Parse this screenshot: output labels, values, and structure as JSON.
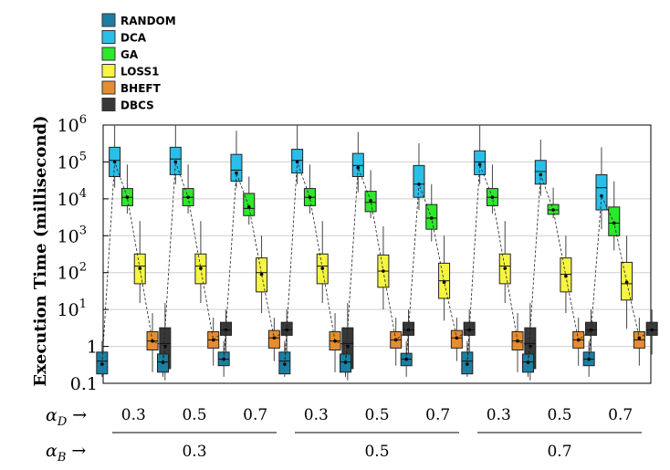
{
  "chart_data": {
    "type": "box",
    "ylabel": "Execution Time (millisecond)",
    "yscale": "log",
    "ylim": [
      0.1,
      1000000
    ],
    "yticks": [
      {
        "value": 0.1,
        "label": "0.1",
        "exp": ""
      },
      {
        "value": 1,
        "label": "1",
        "exp": ""
      },
      {
        "value": 10,
        "label": "10",
        "exp": "1"
      },
      {
        "value": 100,
        "label": "10",
        "exp": "2"
      },
      {
        "value": 1000,
        "label": "10",
        "exp": "3"
      },
      {
        "value": 10000,
        "label": "10",
        "exp": "4"
      },
      {
        "value": 100000,
        "label": "10",
        "exp": "5"
      },
      {
        "value": 1000000,
        "label": "10",
        "exp": "6"
      }
    ],
    "grid": true,
    "legend_position": "top-left",
    "groups": [
      {
        "alpha_d": "0.3",
        "alpha_b": "0.3"
      },
      {
        "alpha_d": "0.5",
        "alpha_b": "0.3"
      },
      {
        "alpha_d": "0.7",
        "alpha_b": "0.3"
      },
      {
        "alpha_d": "0.3",
        "alpha_b": "0.5"
      },
      {
        "alpha_d": "0.5",
        "alpha_b": "0.5"
      },
      {
        "alpha_d": "0.7",
        "alpha_b": "0.5"
      },
      {
        "alpha_d": "0.3",
        "alpha_b": "0.7"
      },
      {
        "alpha_d": "0.5",
        "alpha_b": "0.7"
      },
      {
        "alpha_d": "0.7",
        "alpha_b": "0.7"
      }
    ],
    "alpha_b_groups": [
      "0.3",
      "0.5",
      "0.7"
    ],
    "alpha_d_symbol": "α",
    "alpha_d_sub": "D",
    "alpha_b_symbol": "α",
    "alpha_b_sub": "B",
    "arrow": "→",
    "series": [
      {
        "name": "RANDOM",
        "color": "#1a7fa3",
        "boxes": [
          {
            "min": 0.15,
            "q1": 0.18,
            "median": 0.4,
            "q3": 0.7,
            "max": 1.4,
            "mean": 0.33
          },
          {
            "min": 0.15,
            "q1": 0.2,
            "median": 0.38,
            "q3": 0.62,
            "max": 1.1,
            "mean": 0.37
          },
          {
            "min": 0.15,
            "q1": 0.3,
            "median": 0.45,
            "q3": 0.7,
            "max": 1.4,
            "mean": 0.45
          },
          {
            "min": 0.15,
            "q1": 0.18,
            "median": 0.4,
            "q3": 0.7,
            "max": 1.4,
            "mean": 0.33
          },
          {
            "min": 0.15,
            "q1": 0.2,
            "median": 0.38,
            "q3": 0.62,
            "max": 1.1,
            "mean": 0.37
          },
          {
            "min": 0.15,
            "q1": 0.3,
            "median": 0.45,
            "q3": 0.65,
            "max": 1.4,
            "mean": 0.45
          },
          {
            "min": 0.15,
            "q1": 0.18,
            "median": 0.4,
            "q3": 0.7,
            "max": 1.4,
            "mean": 0.33
          },
          {
            "min": 0.15,
            "q1": 0.2,
            "median": 0.38,
            "q3": 0.62,
            "max": 1.1,
            "mean": 0.37
          },
          {
            "min": 0.15,
            "q1": 0.3,
            "median": 0.45,
            "q3": 0.7,
            "max": 1.4,
            "mean": 0.45
          }
        ]
      },
      {
        "name": "DCA",
        "color": "#29bfe8",
        "boxes": [
          {
            "min": 20000,
            "q1": 40000,
            "median": 110000,
            "q3": 250000,
            "max": 1000000,
            "mean": 100000
          },
          {
            "min": 25000,
            "q1": 45000,
            "median": 120000,
            "q3": 250000,
            "max": 1000000,
            "mean": 100000
          },
          {
            "min": 20000,
            "q1": 30000,
            "median": 60000,
            "q3": 160000,
            "max": 700000,
            "mean": 50000
          },
          {
            "min": 25000,
            "q1": 50000,
            "median": 110000,
            "q3": 220000,
            "max": 1000000,
            "mean": 100000
          },
          {
            "min": 15000,
            "q1": 40000,
            "median": 80000,
            "q3": 170000,
            "max": 650000,
            "mean": 70000
          },
          {
            "min": 5000,
            "q1": 11000,
            "median": 25000,
            "q3": 80000,
            "max": 320000,
            "mean": 25000
          },
          {
            "min": 25000,
            "q1": 45000,
            "median": 100000,
            "q3": 200000,
            "max": 1000000,
            "mean": 85000
          },
          {
            "min": 12000,
            "q1": 25000,
            "median": 55000,
            "q3": 110000,
            "max": 400000,
            "mean": 45000
          },
          {
            "min": 1500,
            "q1": 5000,
            "median": 20000,
            "q3": 45000,
            "max": 250000,
            "mean": 12000
          }
        ]
      },
      {
        "name": "GA",
        "color": "#2ee82b",
        "boxes": [
          {
            "min": 4000,
            "q1": 6500,
            "median": 11000,
            "q3": 19000,
            "max": 85000,
            "mean": 11000
          },
          {
            "min": 4000,
            "q1": 6500,
            "median": 11000,
            "q3": 19000,
            "max": 85000,
            "mean": 11000
          },
          {
            "min": 2000,
            "q1": 3500,
            "median": 5500,
            "q3": 14000,
            "max": 40000,
            "mean": 6000
          },
          {
            "min": 4000,
            "q1": 6500,
            "median": 11000,
            "q3": 19000,
            "max": 85000,
            "mean": 11000
          },
          {
            "min": 3000,
            "q1": 4500,
            "median": 8000,
            "q3": 16000,
            "max": 60000,
            "mean": 9000
          },
          {
            "min": 700,
            "q1": 1500,
            "median": 3000,
            "q3": 7000,
            "max": 25000,
            "mean": 3000
          },
          {
            "min": 4000,
            "q1": 6500,
            "median": 11000,
            "q3": 19000,
            "max": 85000,
            "mean": 11000
          },
          {
            "min": 3000,
            "q1": 3800,
            "median": 5000,
            "q3": 7000,
            "max": 20000,
            "mean": 5000
          },
          {
            "min": 400,
            "q1": 1000,
            "median": 2200,
            "q3": 6000,
            "max": 30000,
            "mean": 2200
          }
        ]
      },
      {
        "name": "LOSS1",
        "color": "#f5f542",
        "boxes": [
          {
            "min": 15,
            "q1": 50,
            "median": 150,
            "q3": 320,
            "max": 2500,
            "mean": 130
          },
          {
            "min": 15,
            "q1": 50,
            "median": 150,
            "q3": 320,
            "max": 2500,
            "mean": 130
          },
          {
            "min": 8,
            "q1": 30,
            "median": 100,
            "q3": 250,
            "max": 1000,
            "mean": 90
          },
          {
            "min": 15,
            "q1": 50,
            "median": 150,
            "q3": 320,
            "max": 2500,
            "mean": 130
          },
          {
            "min": 10,
            "q1": 40,
            "median": 110,
            "q3": 300,
            "max": 1800,
            "mean": 110
          },
          {
            "min": 5,
            "q1": 20,
            "median": 60,
            "q3": 180,
            "max": 1000,
            "mean": 55
          },
          {
            "min": 15,
            "q1": 50,
            "median": 150,
            "q3": 320,
            "max": 2500,
            "mean": 130
          },
          {
            "min": 8,
            "q1": 30,
            "median": 90,
            "q3": 250,
            "max": 1000,
            "mean": 80
          },
          {
            "min": 3,
            "q1": 18,
            "median": 50,
            "q3": 190,
            "max": 1000,
            "mean": 55
          }
        ]
      },
      {
        "name": "BHEFT",
        "color": "#e58d30",
        "boxes": [
          {
            "min": 0.2,
            "q1": 0.8,
            "median": 1.4,
            "q3": 2.5,
            "max": 8,
            "mean": 1.4
          },
          {
            "min": 0.3,
            "q1": 0.9,
            "median": 1.5,
            "q3": 2.5,
            "max": 6,
            "mean": 1.5
          },
          {
            "min": 0.4,
            "q1": 0.9,
            "median": 1.7,
            "q3": 2.7,
            "max": 6,
            "mean": 1.7
          },
          {
            "min": 0.2,
            "q1": 0.8,
            "median": 1.4,
            "q3": 2.5,
            "max": 8,
            "mean": 1.4
          },
          {
            "min": 0.3,
            "q1": 0.9,
            "median": 1.5,
            "q3": 2.5,
            "max": 6,
            "mean": 1.5
          },
          {
            "min": 0.4,
            "q1": 0.9,
            "median": 1.7,
            "q3": 2.7,
            "max": 6,
            "mean": 1.7
          },
          {
            "min": 0.2,
            "q1": 0.8,
            "median": 1.4,
            "q3": 2.5,
            "max": 8,
            "mean": 1.4
          },
          {
            "min": 0.3,
            "q1": 0.9,
            "median": 1.5,
            "q3": 2.5,
            "max": 6,
            "mean": 1.5
          },
          {
            "min": 0.3,
            "q1": 0.9,
            "median": 1.5,
            "q3": 2.5,
            "max": 6,
            "mean": 1.7
          }
        ]
      },
      {
        "name": "DBCS",
        "color": "#383838",
        "boxes": [
          {
            "min": 0.12,
            "q1": 0.25,
            "median": 1.2,
            "q3": 3.2,
            "max": 15,
            "mean": 1.0
          },
          {
            "min": 0.6,
            "q1": 2,
            "median": 2.8,
            "q3": 4.5,
            "max": 10,
            "mean": 2.8
          },
          {
            "min": 0.6,
            "q1": 2,
            "median": 2.8,
            "q3": 4.5,
            "max": 10,
            "mean": 2.8
          },
          {
            "min": 0.12,
            "q1": 0.25,
            "median": 1.2,
            "q3": 3.2,
            "max": 15,
            "mean": 1.0
          },
          {
            "min": 0.6,
            "q1": 2,
            "median": 2.8,
            "q3": 4.5,
            "max": 10,
            "mean": 2.8
          },
          {
            "min": 0.6,
            "q1": 2,
            "median": 2.8,
            "q3": 4.5,
            "max": 10,
            "mean": 2.8
          },
          {
            "min": 0.12,
            "q1": 0.25,
            "median": 1.2,
            "q3": 3.2,
            "max": 15,
            "mean": 1.0
          },
          {
            "min": 0.6,
            "q1": 2,
            "median": 2.8,
            "q3": 4.5,
            "max": 10,
            "mean": 2.8
          },
          {
            "min": 0.6,
            "q1": 2,
            "median": 2.8,
            "q3": 4.5,
            "max": 10,
            "mean": 2.8
          }
        ]
      }
    ]
  }
}
